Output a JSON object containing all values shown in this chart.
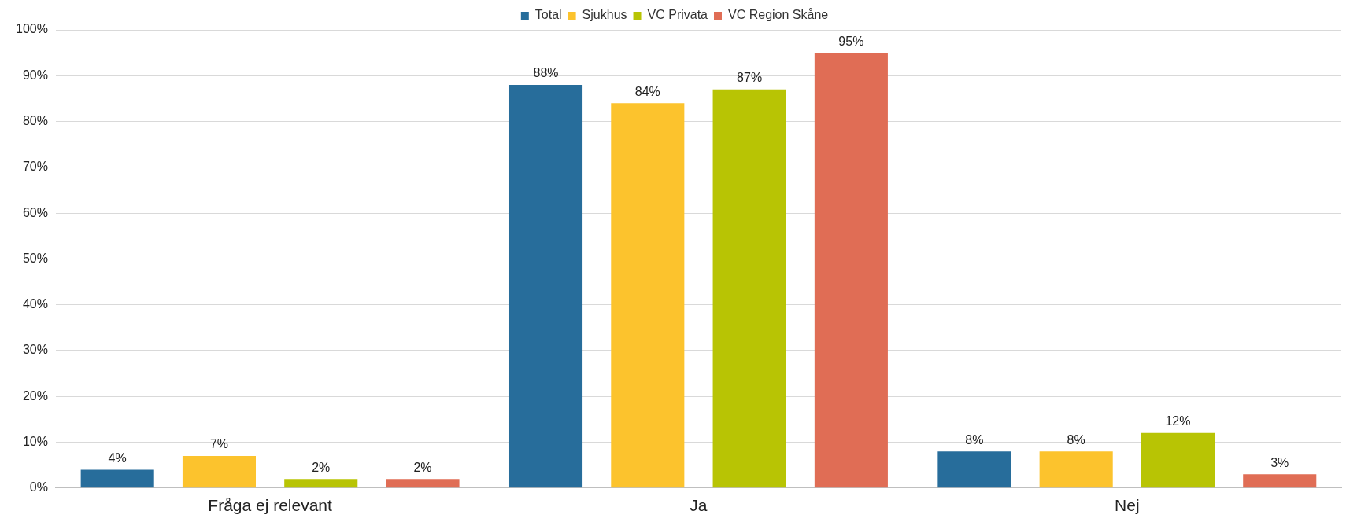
{
  "chart_data": {
    "type": "bar",
    "categories": [
      "Fråga ej relevant",
      "Ja",
      "Nej"
    ],
    "series": [
      {
        "name": "Total",
        "color": "#276d9b",
        "values": [
          4,
          88,
          8
        ],
        "value_labels": [
          "4%",
          "88%",
          "8%"
        ]
      },
      {
        "name": "Sjukhus",
        "color": "#fcc32d",
        "values": [
          7,
          84,
          8
        ],
        "value_labels": [
          "7%",
          "84%",
          "8%"
        ]
      },
      {
        "name": "VC Privata",
        "color": "#b8c404",
        "values": [
          2,
          87,
          12
        ],
        "value_labels": [
          "2%",
          "87%",
          "12%"
        ]
      },
      {
        "name": "VC Region Skåne",
        "color": "#e06d55",
        "values": [
          2,
          95,
          3
        ],
        "value_labels": [
          "2%",
          "95%",
          "3%"
        ]
      }
    ],
    "ylim": [
      0,
      100
    ],
    "yticks": [
      {
        "value": 0,
        "label": "0%"
      },
      {
        "value": 10,
        "label": "10%"
      },
      {
        "value": 20,
        "label": "20%"
      },
      {
        "value": 30,
        "label": "30%"
      },
      {
        "value": 40,
        "label": "40%"
      },
      {
        "value": 50,
        "label": "50%"
      },
      {
        "value": 60,
        "label": "60%"
      },
      {
        "value": 70,
        "label": "70%"
      },
      {
        "value": 80,
        "label": "80%"
      },
      {
        "value": 90,
        "label": "90%"
      },
      {
        "value": 100,
        "label": "100%"
      }
    ],
    "grid": "y",
    "legend": "top"
  }
}
